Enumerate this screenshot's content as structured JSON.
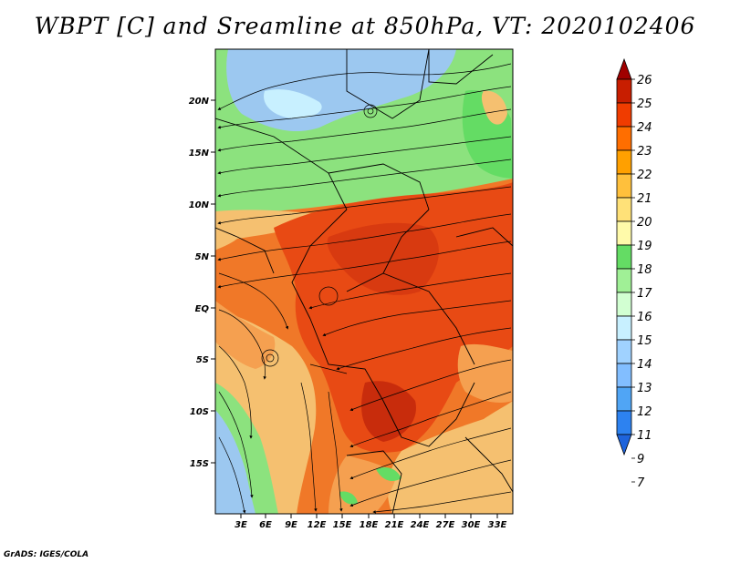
{
  "title": "WBPT [C] and Sreamline at 850hPa, VT: 2020102406",
  "credit": "GrADS: IGES/COLA",
  "map": {
    "lat_ticks": [
      "20N",
      "15N",
      "10N",
      "5N",
      "EQ",
      "5S",
      "10S",
      "15S"
    ],
    "lon_ticks": [
      "3E",
      "6E",
      "9E",
      "12E",
      "15E",
      "18E",
      "21E",
      "24E",
      "27E",
      "30E",
      "33E"
    ]
  },
  "colorbar": {
    "labels": [
      "7",
      "9",
      "11",
      "12",
      "13",
      "14",
      "15",
      "16",
      "17",
      "18",
      "19",
      "20",
      "21",
      "22",
      "23",
      "24",
      "25",
      "26"
    ],
    "colors": [
      "#1e64dc",
      "#2d82f0",
      "#50a5f5",
      "#82beff",
      "#a0d2ff",
      "#c8f0ff",
      "#d2ffd2",
      "#a0f096",
      "#64dc64",
      "#fffaaa",
      "#ffe178",
      "#ffc03c",
      "#ffa000",
      "#ff6e00",
      "#f03c00",
      "#c81e00",
      "#a00000"
    ]
  },
  "colors": {
    "hot": "#e84a14",
    "warm": "#f07828",
    "yellow": "#f5c070",
    "green": "#8ce27e",
    "blue": "#9cc8f0"
  }
}
